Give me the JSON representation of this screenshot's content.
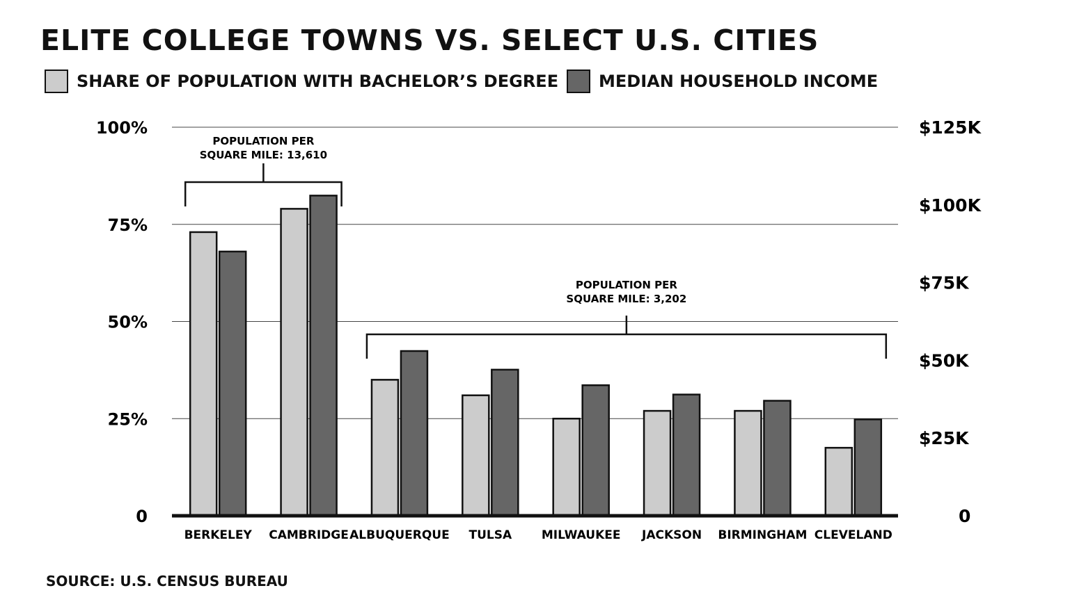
{
  "chart_data": {
    "type": "bar",
    "title": "ELITE COLLEGE TOWNS VS. SELECT U.S. CITIES",
    "categories": [
      "BERKELEY",
      "CAMBRIDGE",
      "ALBUQUERQUE",
      "TULSA",
      "MILWAUKEE",
      "JACKSON",
      "BIRMINGHAM",
      "CLEVELAND"
    ],
    "series": [
      {
        "name": "SHARE OF POPULATION WITH BACHELOR’S DEGREE",
        "axis": "left",
        "unit": "%",
        "color": "#cccccc",
        "values": [
          73,
          79,
          35,
          31,
          25,
          27,
          27,
          17.5
        ]
      },
      {
        "name": "MEDIAN HOUSEHOLD INCOME",
        "axis": "right",
        "unit": "$",
        "color": "#666666",
        "values": [
          85000,
          103000,
          53000,
          47000,
          42000,
          39000,
          37000,
          31000
        ]
      }
    ],
    "y_left": {
      "ylim": [
        0,
        100
      ],
      "ticks": [
        0,
        25,
        50,
        75,
        100
      ],
      "tick_labels": [
        "0",
        "25%",
        "50%",
        "75%",
        "100%"
      ]
    },
    "y_right": {
      "ylim": [
        0,
        125000
      ],
      "ticks": [
        0,
        25000,
        50000,
        75000,
        100000,
        125000
      ],
      "tick_labels": [
        "0",
        "$25K",
        "$50K",
        "$75K",
        "$100K",
        "$125K"
      ]
    },
    "grid": true,
    "legend": "top-left",
    "annotations": [
      {
        "lines": [
          "POPULATION PER",
          "SQUARE MILE: 13,610"
        ],
        "spans": [
          "BERKELEY",
          "CAMBRIDGE"
        ]
      },
      {
        "lines": [
          "POPULATION PER",
          "SQUARE MILE: 3,202"
        ],
        "spans": [
          "ALBUQUERQUE",
          "CLEVELAND"
        ]
      }
    ],
    "source": "SOURCE: U.S. CENSUS BUREAU"
  }
}
